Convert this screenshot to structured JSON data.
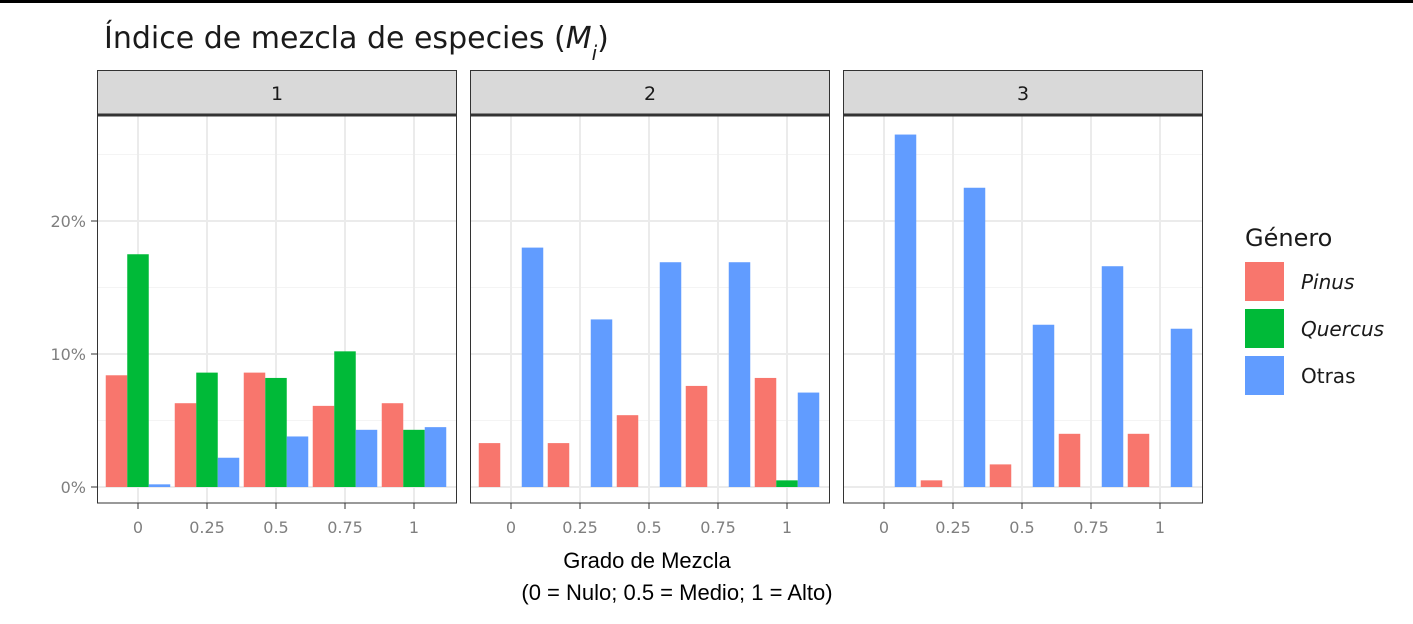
{
  "chart_data": {
    "type": "bar",
    "title": "Índice de mezcla de especies (",
    "title_symbol": "M",
    "title_subscript": "i",
    "title_close": ")",
    "xlabel": "Grado de Mezcla",
    "xlabel_line2": "(0 = Nulo; 0.5 = Medio; 1 = Alto)",
    "ylim": [
      0,
      28.5
    ],
    "yticks": [
      0,
      10,
      20
    ],
    "ytick_labels": [
      "0%",
      "10%",
      "20%"
    ],
    "grid": true,
    "legend": {
      "title": "Género",
      "placement": "right",
      "items": [
        {
          "label": "Pinus",
          "italic": true,
          "color": "#F8766D"
        },
        {
          "label": "Quercus",
          "italic": true,
          "color": "#00BA38"
        },
        {
          "label": "Otras",
          "italic": false,
          "color": "#619CFF"
        }
      ]
    },
    "categories": [
      "0",
      "0.25",
      "0.5",
      "0.75",
      "1"
    ],
    "facets": [
      {
        "label": "1",
        "series": [
          {
            "name": "Pinus",
            "values": [
              8.4,
              6.3,
              8.6,
              6.1,
              6.3
            ]
          },
          {
            "name": "Quercus",
            "values": [
              17.5,
              8.6,
              8.2,
              10.2,
              4.3
            ]
          },
          {
            "name": "Otras",
            "values": [
              0.2,
              2.2,
              3.8,
              4.3,
              4.5
            ]
          }
        ]
      },
      {
        "label": "2",
        "series": [
          {
            "name": "Pinus",
            "values": [
              3.3,
              3.3,
              5.4,
              7.6,
              8.2
            ]
          },
          {
            "name": "Quercus",
            "values": [
              0,
              0,
              0,
              0,
              0.5
            ]
          },
          {
            "name": "Otras",
            "values": [
              18.0,
              12.6,
              16.9,
              16.9,
              7.1
            ]
          }
        ]
      },
      {
        "label": "3",
        "series": [
          {
            "name": "Pinus",
            "values": [
              0,
              0.5,
              1.7,
              4.0,
              4.0
            ]
          },
          {
            "name": "Quercus",
            "values": [
              0,
              0,
              0,
              0,
              0
            ]
          },
          {
            "name": "Otras",
            "values": [
              26.5,
              22.5,
              12.2,
              16.6,
              11.9
            ]
          }
        ]
      }
    ],
    "colors": {
      "panel_bg": "#ffffff",
      "strip_bg": "#d9d9d9",
      "grid_major": "#ebebeb",
      "grid_minor": "#f4f4f4",
      "border": "#333333",
      "tick_text": "#7f7f7f"
    }
  }
}
